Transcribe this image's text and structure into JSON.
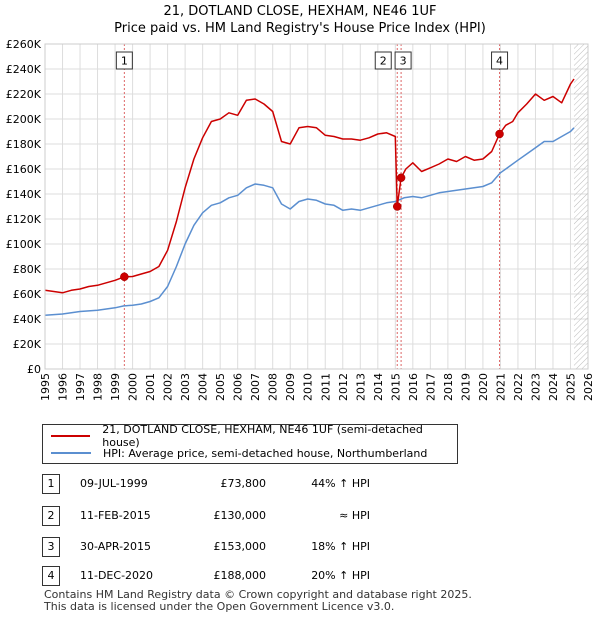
{
  "title": {
    "line1": "21, DOTLAND CLOSE, HEXHAM, NE46 1UF",
    "line2": "Price paid vs. HM Land Registry's House Price Index (HPI)"
  },
  "chart_data": {
    "type": "line",
    "xlim": [
      1995,
      2026
    ],
    "ylim": [
      0,
      260000
    ],
    "x_ticks": [
      "1995",
      "1996",
      "1997",
      "1998",
      "1999",
      "2000",
      "2001",
      "2002",
      "2003",
      "2004",
      "2005",
      "2006",
      "2007",
      "2008",
      "2009",
      "2010",
      "2011",
      "2012",
      "2013",
      "2014",
      "2015",
      "2016",
      "2017",
      "2018",
      "2019",
      "2020",
      "2021",
      "2022",
      "2023",
      "2024",
      "2025",
      "2026"
    ],
    "y_ticks": [
      {
        "value": 0,
        "label": "£0"
      },
      {
        "value": 20000,
        "label": "£20K"
      },
      {
        "value": 40000,
        "label": "£40K"
      },
      {
        "value": 60000,
        "label": "£60K"
      },
      {
        "value": 80000,
        "label": "£80K"
      },
      {
        "value": 100000,
        "label": "£100K"
      },
      {
        "value": 120000,
        "label": "£120K"
      },
      {
        "value": 140000,
        "label": "£140K"
      },
      {
        "value": 160000,
        "label": "£160K"
      },
      {
        "value": 180000,
        "label": "£180K"
      },
      {
        "value": 200000,
        "label": "£200K"
      },
      {
        "value": 220000,
        "label": "£220K"
      },
      {
        "value": 240000,
        "label": "£240K"
      },
      {
        "value": 260000,
        "label": "£260K"
      }
    ],
    "grid": true,
    "projection_start": 2025.2,
    "series": [
      {
        "name": "21, DOTLAND CLOSE, HEXHAM, NE46 1UF (semi-detached house)",
        "color": "#cc0000",
        "x": [
          1995.0,
          1995.5,
          1996.0,
          1996.5,
          1997.0,
          1997.5,
          1998.0,
          1998.5,
          1999.0,
          1999.53,
          2000.0,
          2000.5,
          2001.0,
          2001.5,
          2002.0,
          2002.5,
          2003.0,
          2003.5,
          2004.0,
          2004.5,
          2005.0,
          2005.5,
          2006.0,
          2006.5,
          2007.0,
          2007.5,
          2008.0,
          2008.5,
          2009.0,
          2009.5,
          2010.0,
          2010.5,
          2011.0,
          2011.5,
          2012.0,
          2012.5,
          2013.0,
          2013.5,
          2014.0,
          2014.5,
          2015.0,
          2015.11,
          2015.33,
          2015.6,
          2016.0,
          2016.5,
          2017.0,
          2017.5,
          2018.0,
          2018.5,
          2019.0,
          2019.5,
          2020.0,
          2020.5,
          2020.95,
          2021.3,
          2021.7,
          2022.0,
          2022.5,
          2023.0,
          2023.5,
          2024.0,
          2024.5,
          2025.0,
          2025.2
        ],
        "y": [
          63000,
          62000,
          61000,
          63000,
          64000,
          66000,
          67000,
          69000,
          71000,
          73800,
          74000,
          76000,
          78000,
          82000,
          95000,
          118000,
          145000,
          168000,
          185000,
          198000,
          200000,
          205000,
          203000,
          215000,
          216000,
          212000,
          206000,
          182000,
          180000,
          193000,
          194000,
          193000,
          187000,
          186000,
          184000,
          184000,
          183000,
          185000,
          188000,
          189000,
          186000,
          130000,
          153000,
          160000,
          165000,
          158000,
          161000,
          164000,
          168000,
          166000,
          170000,
          167000,
          168000,
          174000,
          188000,
          195000,
          198000,
          205000,
          212000,
          220000,
          215000,
          218000,
          213000,
          228000,
          232000
        ]
      },
      {
        "name": "HPI: Average price, semi-detached house, Northumberland",
        "color": "#5b8fd0",
        "x": [
          1995.0,
          1995.5,
          1996.0,
          1996.5,
          1997.0,
          1997.5,
          1998.0,
          1998.5,
          1999.0,
          1999.5,
          2000.0,
          2000.5,
          2001.0,
          2001.5,
          2002.0,
          2002.5,
          2003.0,
          2003.5,
          2004.0,
          2004.5,
          2005.0,
          2005.5,
          2006.0,
          2006.5,
          2007.0,
          2007.5,
          2008.0,
          2008.5,
          2009.0,
          2009.5,
          2010.0,
          2010.5,
          2011.0,
          2011.5,
          2012.0,
          2012.5,
          2013.0,
          2013.5,
          2014.0,
          2014.5,
          2015.0,
          2015.5,
          2016.0,
          2016.5,
          2017.0,
          2017.5,
          2018.0,
          2018.5,
          2019.0,
          2019.5,
          2020.0,
          2020.5,
          2021.0,
          2021.5,
          2022.0,
          2022.5,
          2023.0,
          2023.5,
          2024.0,
          2024.5,
          2025.0,
          2025.2
        ],
        "y": [
          43000,
          43500,
          44000,
          45000,
          46000,
          46500,
          47000,
          48000,
          49000,
          50500,
          51000,
          52000,
          54000,
          57000,
          66000,
          82000,
          100000,
          115000,
          125000,
          131000,
          133000,
          137000,
          139000,
          145000,
          148000,
          147000,
          145000,
          132000,
          128000,
          134000,
          136000,
          135000,
          132000,
          131000,
          127000,
          128000,
          127000,
          129000,
          131000,
          133000,
          134000,
          137000,
          138000,
          137000,
          139000,
          141000,
          142000,
          143000,
          144000,
          145000,
          146000,
          149000,
          157000,
          162000,
          167000,
          172000,
          177000,
          182000,
          182000,
          186000,
          190000,
          193000
        ]
      }
    ],
    "annotations": [
      {
        "label": "1",
        "x": 1999.53,
        "y": 73800
      },
      {
        "label": "2",
        "x": 2015.11,
        "y": 130000
      },
      {
        "label": "3",
        "x": 2015.33,
        "y": 153000
      },
      {
        "label": "4",
        "x": 2020.95,
        "y": 188000
      }
    ]
  },
  "legend": {
    "items": [
      {
        "label": "21, DOTLAND CLOSE, HEXHAM, NE46 1UF (semi-detached house)",
        "color": "#cc0000"
      },
      {
        "label": "HPI: Average price, semi-detached house, Northumberland",
        "color": "#5b8fd0"
      }
    ]
  },
  "transactions": [
    {
      "num": "1",
      "date": "09-JUL-1999",
      "price": "£73,800",
      "hpi": "44% ↑ HPI"
    },
    {
      "num": "2",
      "date": "11-FEB-2015",
      "price": "£130,000",
      "hpi": "≈ HPI"
    },
    {
      "num": "3",
      "date": "30-APR-2015",
      "price": "£153,000",
      "hpi": "18% ↑ HPI"
    },
    {
      "num": "4",
      "date": "11-DEC-2020",
      "price": "£188,000",
      "hpi": "20% ↑ HPI"
    }
  ],
  "footer": {
    "line1": "Contains HM Land Registry data © Crown copyright and database right 2025.",
    "line2": "This data is licensed under the Open Government Licence v3.0."
  }
}
